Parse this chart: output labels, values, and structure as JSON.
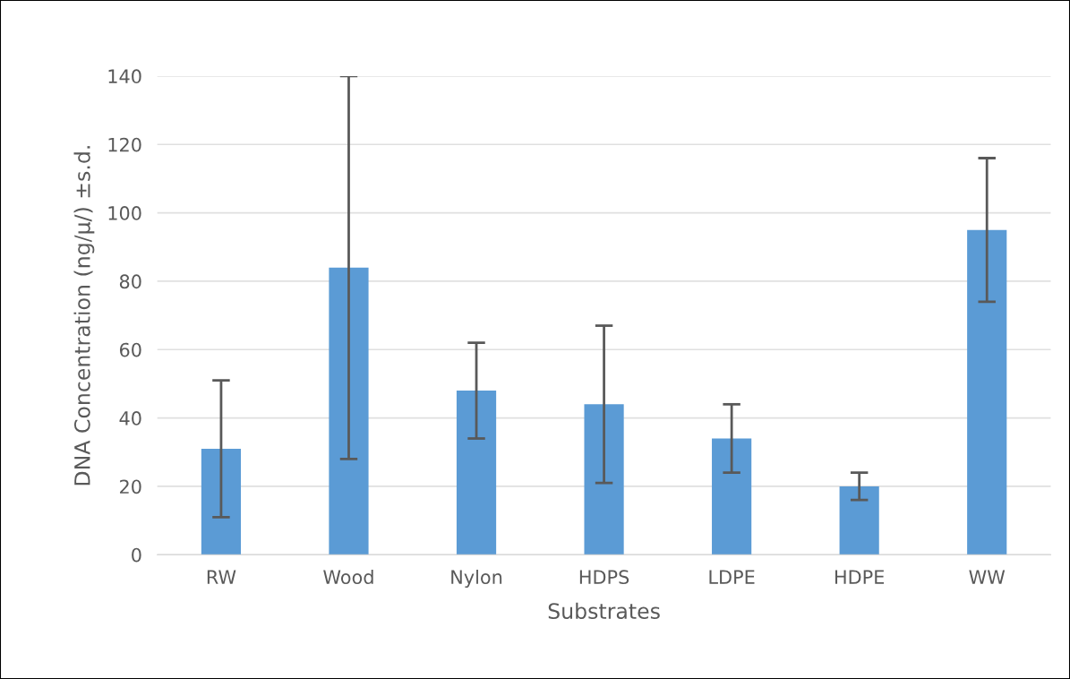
{
  "chart_data": {
    "type": "bar",
    "xlabel": "Substrates",
    "ylabel": "DNA Concentration (ng/µ/) ±s.d.",
    "categories": [
      "RW",
      "Wood",
      "Nylon",
      "HDPS",
      "LDPE",
      "HDPE",
      "WW"
    ],
    "values": [
      31,
      84,
      48,
      44,
      34,
      20,
      95
    ],
    "errors": [
      20,
      56,
      14,
      23,
      10,
      4,
      21
    ],
    "color": "#5b9bd5",
    "ylim": [
      0,
      140
    ],
    "yticks": [
      0,
      20,
      40,
      60,
      80,
      100,
      120,
      140
    ],
    "grid": "y"
  }
}
